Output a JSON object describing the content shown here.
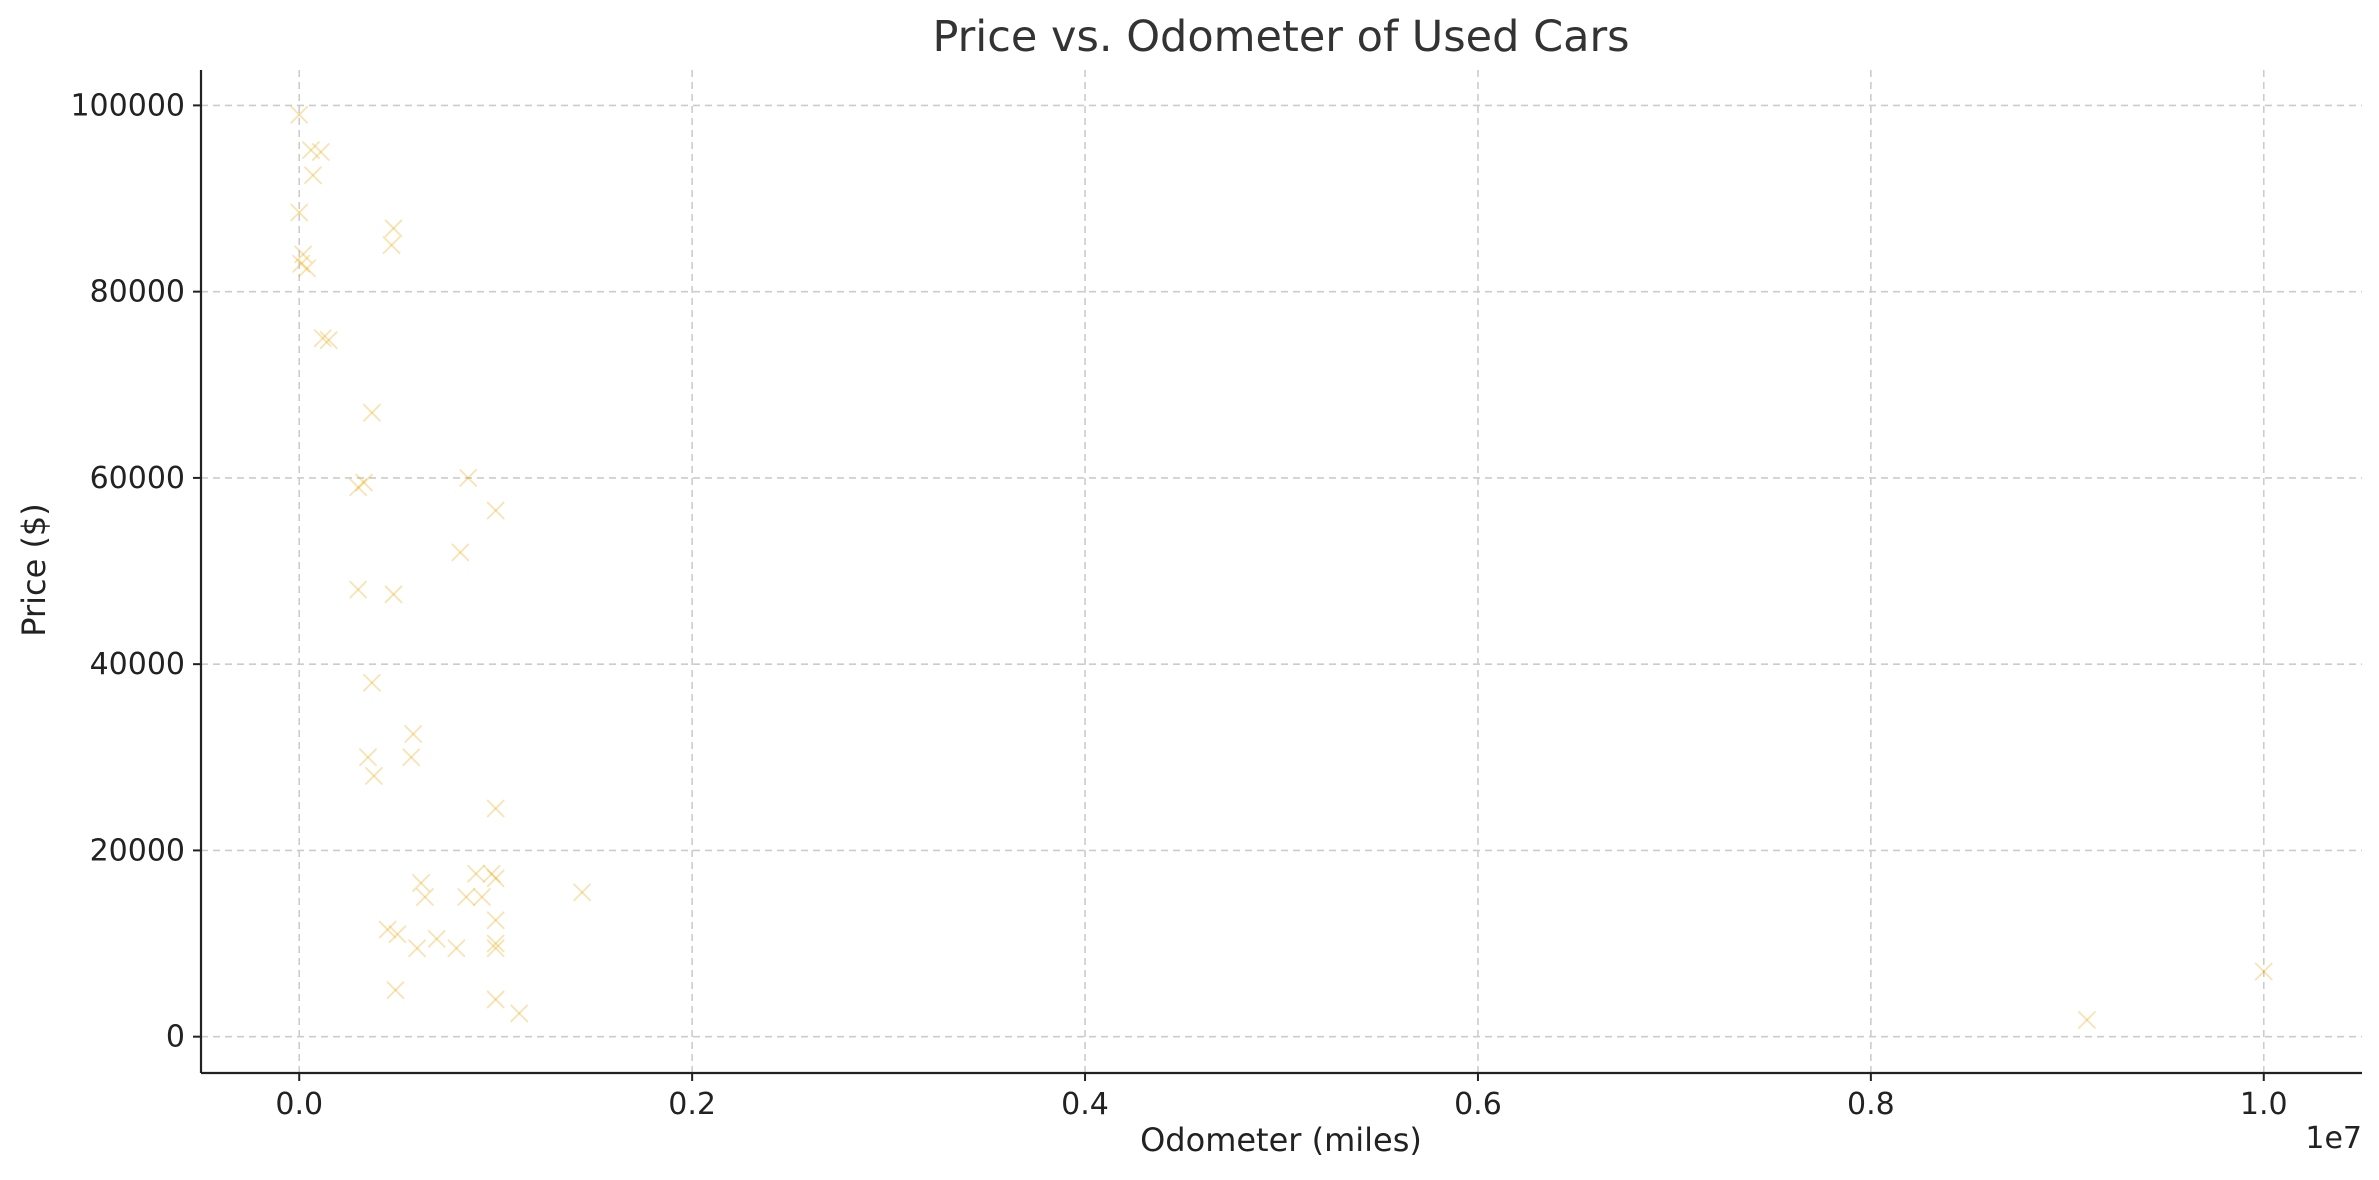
{
  "chart_data": {
    "type": "scatter",
    "title": "Price vs. Odometer of Used Cars",
    "xlabel": "Odometer (miles)",
    "ylabel": "Price ($)",
    "x_offset_label": "1e7",
    "x_scale": 10000000,
    "xlim": [
      -500000,
      10500000
    ],
    "ylim": [
      -3900,
      103800
    ],
    "x_ticks": [
      0,
      2000000,
      4000000,
      6000000,
      8000000,
      10000000
    ],
    "x_tick_labels": [
      "0.0",
      "0.2",
      "0.4",
      "0.6",
      "0.8",
      "1.0"
    ],
    "y_ticks": [
      0,
      20000,
      40000,
      60000,
      80000,
      100000
    ],
    "y_tick_labels": [
      "0",
      "20000",
      "40000",
      "60000",
      "80000",
      "100000"
    ],
    "grid": true,
    "marker": "x",
    "color": "#E8A200",
    "alpha": 0.3,
    "series": [
      {
        "values": [
          [
            0,
            99000
          ],
          [
            60000,
            95200
          ],
          [
            110000,
            95000
          ],
          [
            70000,
            92500
          ],
          [
            0,
            88500
          ],
          [
            20000,
            84000
          ],
          [
            10000,
            83000
          ],
          [
            40000,
            82500
          ],
          [
            480000,
            86800
          ],
          [
            470000,
            85000
          ],
          [
            120000,
            75000
          ],
          [
            150000,
            74800
          ],
          [
            370000,
            67000
          ],
          [
            300000,
            59000
          ],
          [
            330000,
            59500
          ],
          [
            860000,
            60000
          ],
          [
            1000000,
            56500
          ],
          [
            820000,
            52000
          ],
          [
            300000,
            48000
          ],
          [
            480000,
            47500
          ],
          [
            370000,
            38000
          ],
          [
            350000,
            30000
          ],
          [
            580000,
            32500
          ],
          [
            570000,
            30000
          ],
          [
            380000,
            28000
          ],
          [
            1000000,
            24500
          ],
          [
            620000,
            16500
          ],
          [
            640000,
            15000
          ],
          [
            850000,
            15000
          ],
          [
            900000,
            17500
          ],
          [
            930000,
            15000
          ],
          [
            980000,
            17500
          ],
          [
            1000000,
            17000
          ],
          [
            1000000,
            12500
          ],
          [
            1000000,
            10000
          ],
          [
            1000000,
            9500
          ],
          [
            700000,
            10500
          ],
          [
            800000,
            9500
          ],
          [
            600000,
            9500
          ],
          [
            450000,
            11500
          ],
          [
            500000,
            11000
          ],
          [
            490000,
            5000
          ],
          [
            1000000,
            4000
          ],
          [
            1120000,
            2500
          ],
          [
            1440000,
            15500
          ],
          [
            9100000,
            1800
          ],
          [
            10000000,
            7000
          ]
        ]
      }
    ]
  }
}
